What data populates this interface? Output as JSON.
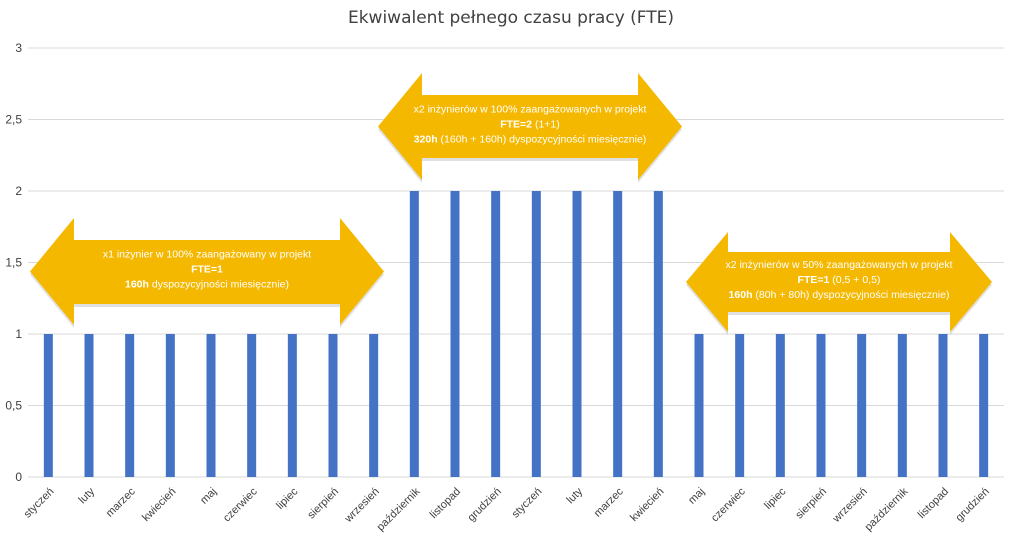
{
  "chart_data": {
    "type": "bar",
    "title": "Ekwiwalent pełnego czasu pracy (FTE)",
    "xlabel": "",
    "ylabel": "",
    "ylim": [
      0,
      3
    ],
    "yticks": [
      "0",
      "0,5",
      "1",
      "1,5",
      "2",
      "2,5",
      "3"
    ],
    "grid": true,
    "legend": "none",
    "categories": [
      "styczeń",
      "luty",
      "marzec",
      "kwiecień",
      "maj",
      "czerwiec",
      "lipiec",
      "sierpień",
      "wrzesień",
      "październik",
      "listopad",
      "grudzień",
      "styczeń",
      "luty",
      "marzec",
      "kwiecień",
      "maj",
      "czerwiec",
      "lipiec",
      "sierpień",
      "wrzesień",
      "październik",
      "listopad",
      "grudzień"
    ],
    "values": [
      1,
      1,
      1,
      1,
      1,
      1,
      1,
      1,
      1,
      2,
      2,
      2,
      2,
      2,
      2,
      2,
      1,
      1,
      1,
      1,
      1,
      1,
      1,
      1
    ],
    "bar_color": "#4472c4",
    "callout_color": "#f5b800",
    "annotations": [
      {
        "line1": "x1 inżynier w 100% zaangażowany w projekt",
        "line2_bold": "FTE=1",
        "line2_rest": "",
        "line3_bold": "160h",
        "line3_rest": " dyspozycyjności miesięcznie)"
      },
      {
        "line1": "x2 inżynierów w 100% zaangażowanych w projekt",
        "line2_bold": "FTE=2",
        "line2_rest": " (1+1)",
        "line3_bold": "320h",
        "line3_rest": " (160h + 160h) dyspozycyjności miesięcznie)"
      },
      {
        "line1": "x2 inżynierów w 50% zaangażowanych w projekt",
        "line2_bold": "FTE=1",
        "line2_rest": " (0,5 + 0,5)",
        "line3_bold": "160h",
        "line3_rest": " (80h + 80h) dyspozycyjności miesięcznie)"
      }
    ]
  }
}
